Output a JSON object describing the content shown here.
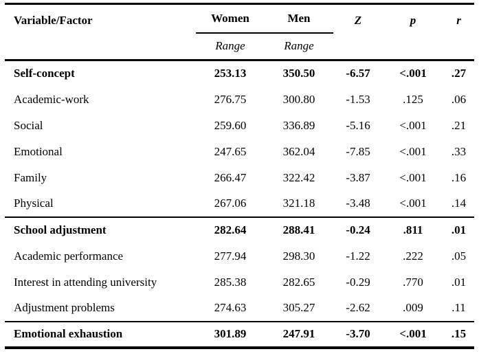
{
  "table": {
    "columns": {
      "variable_factor": "Variable/Factor",
      "women": "Women",
      "men": "Men",
      "z": "Z",
      "p": "p",
      "r": "r"
    },
    "subheaders": {
      "women_range": "Range",
      "men_range": "Range"
    },
    "rows": [
      {
        "label": "Self-concept",
        "women": "253.13",
        "men": "350.50",
        "z": "-6.57",
        "p": "<.001",
        "r": ".27"
      },
      {
        "label": "Academic-work",
        "women": "276.75",
        "men": "300.80",
        "z": "-1.53",
        "p": ".125",
        "r": ".06"
      },
      {
        "label": "Social",
        "women": "259.60",
        "men": "336.89",
        "z": "-5.16",
        "p": "<.001",
        "r": ".21"
      },
      {
        "label": "Emotional",
        "women": "247.65",
        "men": "362.04",
        "z": "-7.85",
        "p": "<.001",
        "r": ".33"
      },
      {
        "label": "Family",
        "women": "266.47",
        "men": "322.42",
        "z": "-3.87",
        "p": "<.001",
        "r": ".16"
      },
      {
        "label": "Physical",
        "women": "267.06",
        "men": "321.18",
        "z": "-3.48",
        "p": "<.001",
        "r": ".14"
      },
      {
        "label": "School adjustment",
        "women": "282.64",
        "men": "288.41",
        "z": "-0.24",
        "p": ".811",
        "r": ".01"
      },
      {
        "label": "Academic performance",
        "women": "277.94",
        "men": "298.30",
        "z": "-1.22",
        "p": ".222",
        "r": ".05"
      },
      {
        "label": "Interest in attending university",
        "women": "285.38",
        "men": "282.65",
        "z": "-0.29",
        "p": ".770",
        "r": ".01"
      },
      {
        "label": "Adjustment problems",
        "women": "274.63",
        "men": "305.27",
        "z": "-2.62",
        "p": ".009",
        "r": ".11"
      },
      {
        "label": "Emotional exhaustion",
        "women": "301.89",
        "men": "247.91",
        "z": "-3.70",
        "p": "<.001",
        "r": ".15"
      }
    ]
  }
}
